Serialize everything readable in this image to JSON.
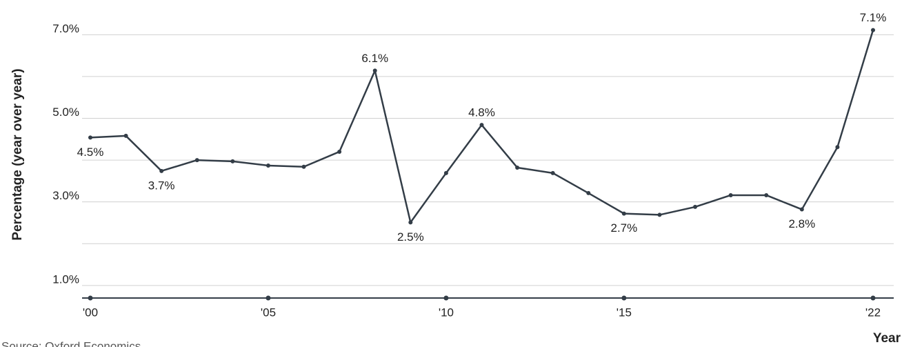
{
  "chart_data": {
    "type": "line",
    "y_label": "Percentage (year over year)",
    "x_label": "Year",
    "source": "Source: Oxford Economics",
    "color": "#333d47",
    "x": [
      2000,
      2001,
      2002,
      2003,
      2004,
      2005,
      2006,
      2007,
      2008,
      2009,
      2010,
      2011,
      2012,
      2013,
      2014,
      2015,
      2016,
      2017,
      2018,
      2019,
      2020,
      2021,
      2022
    ],
    "values": [
      4.54,
      4.58,
      3.74,
      4.0,
      3.97,
      3.87,
      3.84,
      4.2,
      6.14,
      2.51,
      3.69,
      4.84,
      3.82,
      3.69,
      3.21,
      2.72,
      2.69,
      2.88,
      3.16,
      3.16,
      2.82,
      4.31,
      7.11
    ],
    "value_labels": [
      "4.5%",
      null,
      "3.7%",
      null,
      null,
      null,
      null,
      null,
      "6.1%",
      "2.5%",
      null,
      "4.8%",
      null,
      null,
      null,
      "2.7%",
      null,
      null,
      null,
      null,
      "2.8%",
      null,
      "7.1%"
    ],
    "xlim": [
      2000,
      2022
    ],
    "xticks": [
      {
        "value": 2000,
        "label": "'00"
      },
      {
        "value": 2005,
        "label": "'05"
      },
      {
        "value": 2010,
        "label": "'10"
      },
      {
        "value": 2015,
        "label": "'15"
      },
      {
        "value": 2022,
        "label": "'22"
      }
    ],
    "ylim": [
      0.7,
      7.2
    ],
    "yticks": [
      {
        "value": 1,
        "label": "1.0%"
      },
      {
        "value": 3,
        "label": "3.0%"
      },
      {
        "value": 5,
        "label": "5.0%"
      },
      {
        "value": 7,
        "label": "7.0%"
      }
    ],
    "yminorticks": [
      2,
      4,
      6
    ],
    "grid": true
  }
}
